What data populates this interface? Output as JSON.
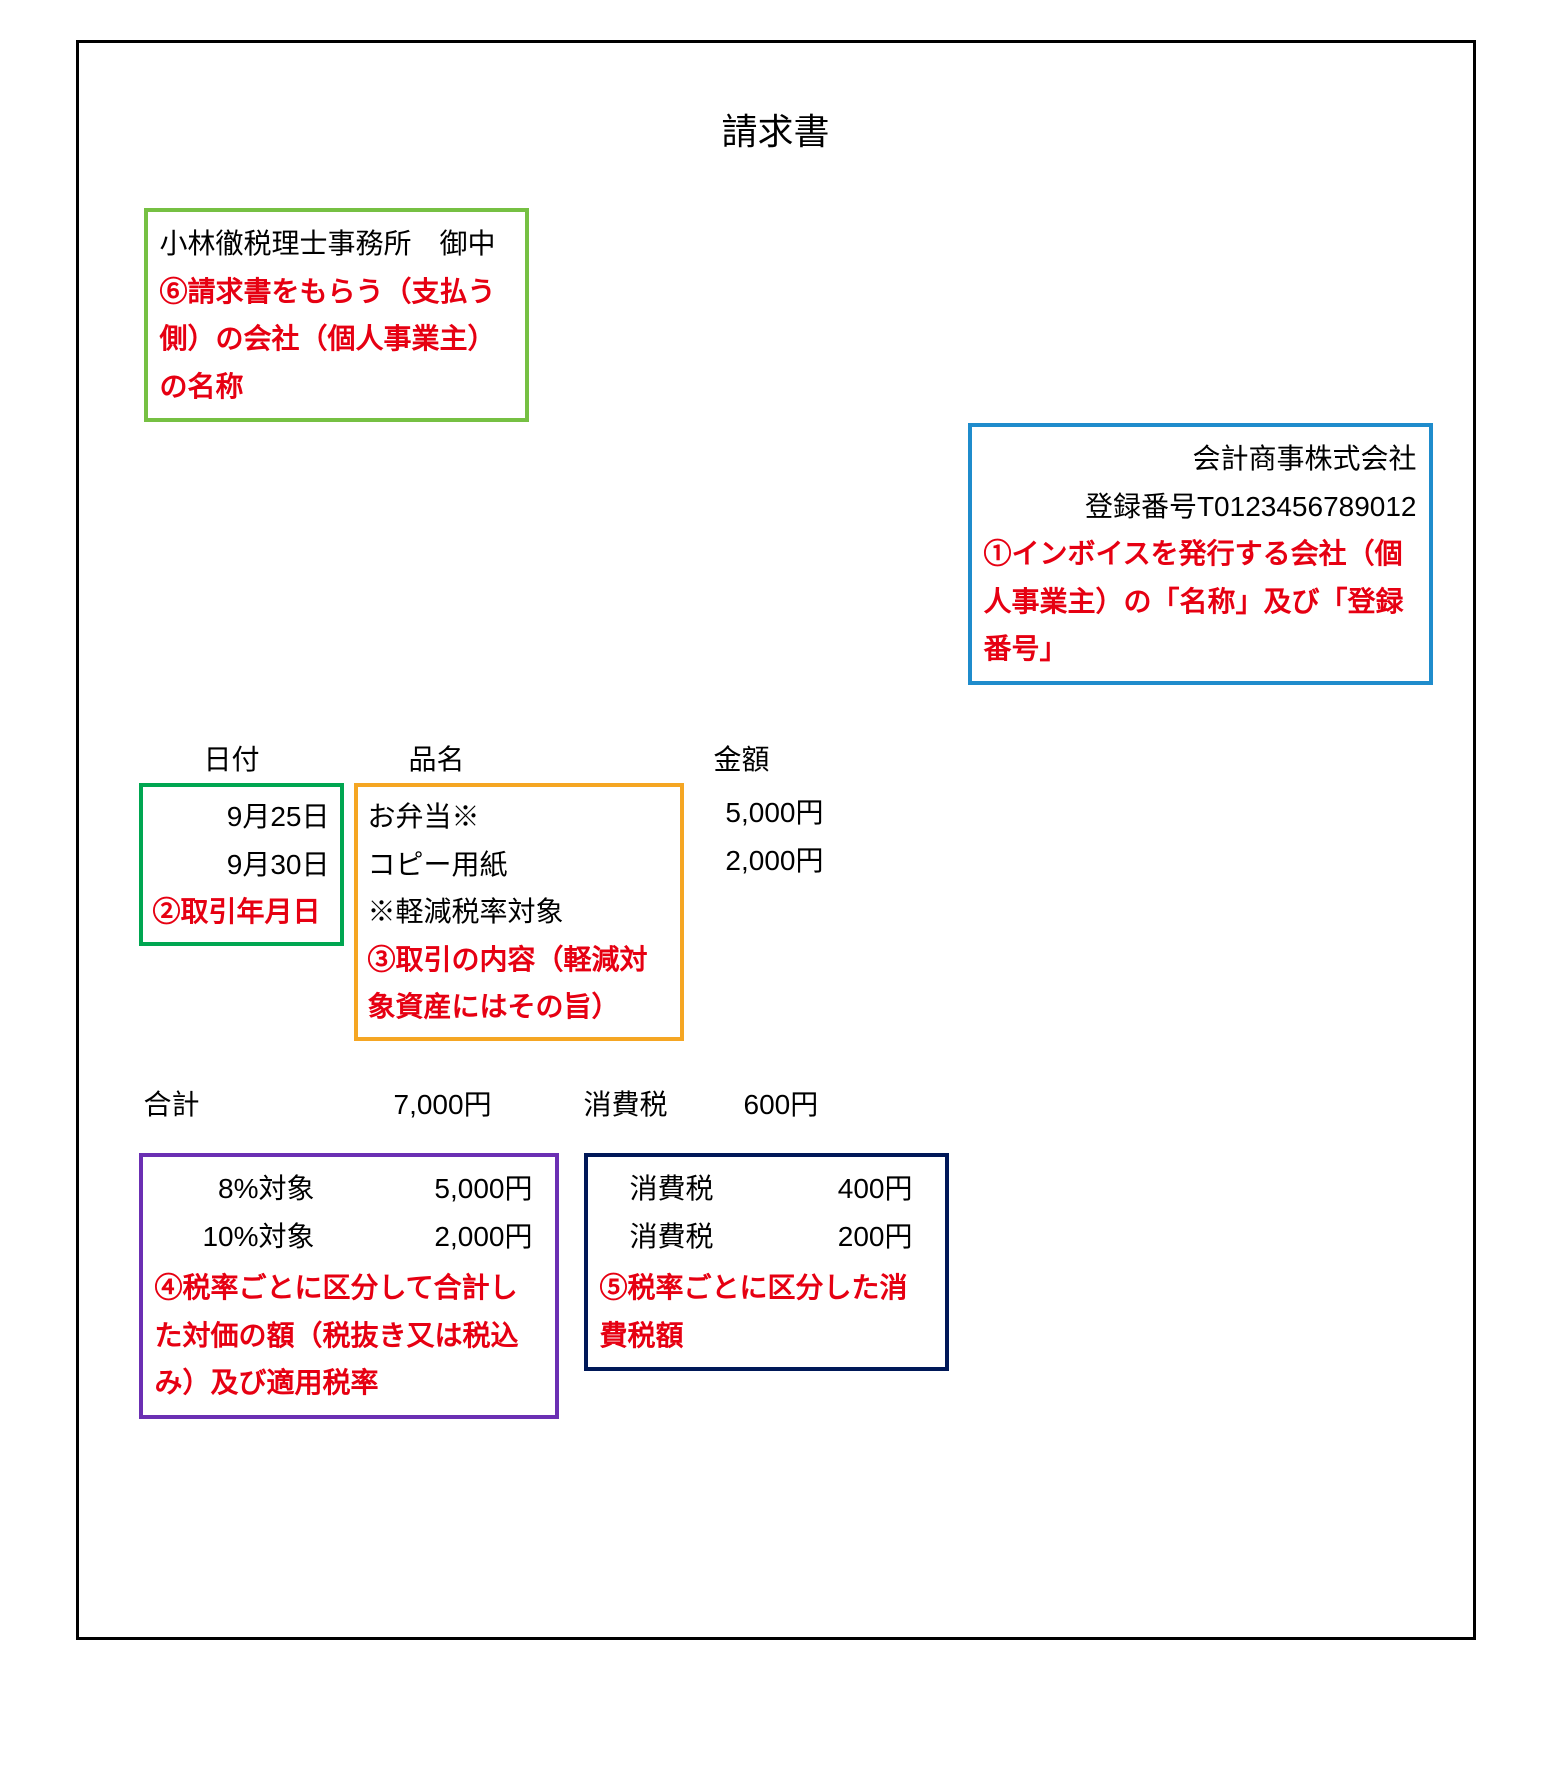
{
  "title": "請求書",
  "recipient": {
    "name": "小林徹税理士事務所　御中",
    "note": "⑥請求書をもらう（支払う側）の会社（個人事業主）の名称",
    "border_color": "#76c043"
  },
  "issuer": {
    "company": "会計商事株式会社",
    "reg_no": "登録番号T0123456789012",
    "note": "①インボイスを発行する会社（個人事業主）の「名称」及び「登録番号」",
    "border_color": "#1f8ccc"
  },
  "headers": {
    "date": "日付",
    "item": "品名",
    "amount": "金額"
  },
  "date_box": {
    "row1": "9月25日",
    "row2": "9月30日",
    "note": "②取引年月日",
    "border_color": "#00a651"
  },
  "item_box": {
    "row1": "お弁当※",
    "row2": "コピー用紙",
    "row3": "※軽減税率対象",
    "note": "③取引の内容（軽減対象資産にはその旨）",
    "border_color": "#f5a623"
  },
  "amounts": {
    "row1": "5,000円",
    "row2": "2,000円"
  },
  "total": {
    "label": "合計",
    "value": "7,000円",
    "tax_label": "消費税",
    "tax_value": "600円"
  },
  "rate_box": {
    "row1_label": "8%対象",
    "row1_value": "5,000円",
    "row2_label": "10%対象",
    "row2_value": "2,000円",
    "note": "④税率ごとに区分して合計した対価の額（税抜き又は税込み）及び適用税率",
    "border_color": "#6b2fb3"
  },
  "tax_box": {
    "row1_label": "消費税",
    "row1_value": "400円",
    "row2_label": "消費税",
    "row2_value": "200円",
    "note": "⑤税率ごとに区分した消費税額",
    "border_color": "#001858"
  },
  "colors": {
    "text_black": "#000000",
    "text_red": "#e60012",
    "frame_border": "#000000",
    "background": "#ffffff"
  },
  "typography": {
    "title_fontsize": 36,
    "body_fontsize": 28
  }
}
